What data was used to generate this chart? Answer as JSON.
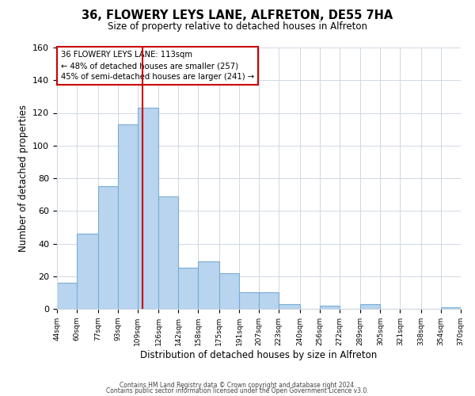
{
  "title": "36, FLOWERY LEYS LANE, ALFRETON, DE55 7HA",
  "subtitle": "Size of property relative to detached houses in Alfreton",
  "xlabel": "Distribution of detached houses by size in Alfreton",
  "ylabel": "Number of detached properties",
  "bar_left_edges": [
    44,
    60,
    77,
    93,
    109,
    126,
    142,
    158,
    175,
    191,
    207,
    223,
    240,
    256,
    272,
    289,
    305,
    321,
    338,
    354
  ],
  "bar_heights": [
    16,
    46,
    75,
    113,
    123,
    69,
    25,
    29,
    22,
    10,
    10,
    3,
    0,
    2,
    0,
    3,
    0,
    0,
    0,
    1
  ],
  "bar_widths": [
    16,
    17,
    16,
    16,
    17,
    16,
    16,
    17,
    16,
    16,
    16,
    17,
    16,
    16,
    17,
    16,
    16,
    17,
    16,
    16
  ],
  "tick_labels": [
    "44sqm",
    "60sqm",
    "77sqm",
    "93sqm",
    "109sqm",
    "126sqm",
    "142sqm",
    "158sqm",
    "175sqm",
    "191sqm",
    "207sqm",
    "223sqm",
    "240sqm",
    "256sqm",
    "272sqm",
    "289sqm",
    "305sqm",
    "321sqm",
    "338sqm",
    "354sqm",
    "370sqm"
  ],
  "tick_positions": [
    44,
    60,
    77,
    93,
    109,
    126,
    142,
    158,
    175,
    191,
    207,
    223,
    240,
    256,
    272,
    289,
    305,
    321,
    338,
    354,
    370
  ],
  "bar_color": "#b8d4ee",
  "bar_edge_color": "#7aadd4",
  "vline_x": 113,
  "vline_color": "#cc0000",
  "annotation_lines": [
    "36 FLOWERY LEYS LANE: 113sqm",
    "← 48% of detached houses are smaller (257)",
    "45% of semi-detached houses are larger (241) →"
  ],
  "ylim": [
    0,
    160
  ],
  "xlim": [
    44,
    370
  ],
  "background_color": "#ffffff",
  "footer_line1": "Contains HM Land Registry data © Crown copyright and database right 2024.",
  "footer_line2": "Contains public sector information licensed under the Open Government Licence v3.0."
}
